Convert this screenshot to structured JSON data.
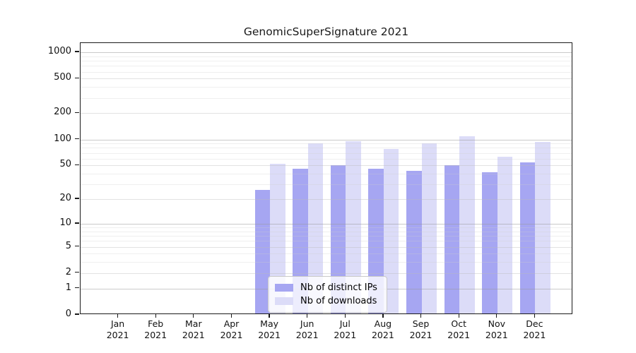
{
  "title": "GenomicSuperSignature 2021",
  "chart_data": {
    "type": "bar",
    "title": "GenomicSuperSignature 2021",
    "x_categories": [
      "Jan 2021",
      "Feb 2021",
      "Mar 2021",
      "Apr 2021",
      "May 2021",
      "Jun 2021",
      "Jul 2021",
      "Aug 2021",
      "Sep 2021",
      "Oct 2021",
      "Nov 2021",
      "Dec 2021"
    ],
    "x_tick_months": [
      "Jan",
      "Feb",
      "Mar",
      "Apr",
      "May",
      "Jun",
      "Jul",
      "Aug",
      "Sep",
      "Oct",
      "Nov",
      "Dec"
    ],
    "x_tick_year": "2021",
    "series": [
      {
        "name": "Nb of distinct IPs",
        "color": "#a6a6f2",
        "values": [
          0,
          0,
          0,
          0,
          25,
          44,
          48,
          44,
          42,
          48,
          40,
          52
        ]
      },
      {
        "name": "Nb of downloads",
        "color": "#dcdcf8",
        "values": [
          0,
          0,
          0,
          0,
          50,
          87,
          92,
          75,
          87,
          105,
          61,
          90
        ]
      }
    ],
    "y_scale": "log1p",
    "y_tick_values": [
      0,
      1,
      2,
      5,
      10,
      20,
      50,
      100,
      200,
      500,
      1000
    ],
    "y_tick_labels": [
      "0",
      "1",
      "2",
      "5",
      "10",
      "20",
      "50",
      "100",
      "200",
      "500",
      "1000"
    ],
    "y_minor_grid_values": [
      3,
      4,
      6,
      7,
      8,
      9,
      30,
      40,
      60,
      70,
      80,
      90,
      300,
      400,
      600,
      700,
      800,
      900
    ],
    "y_decade_values": [
      1,
      10,
      100,
      1000
    ],
    "ylim": [
      0,
      1280
    ],
    "grid": true,
    "legend_position": "bottom-center",
    "colors": {
      "grid_decade": "rgba(150,150,150,0.50)",
      "grid_labeled": "rgba(185,185,185,0.42)",
      "grid_minor": "rgba(205,205,205,0.32)",
      "spine": "#1a1a1a",
      "tick_text": "#111111"
    }
  },
  "legend": {
    "items": [
      {
        "label": "Nb of distinct IPs",
        "color": "#a6a6f2"
      },
      {
        "label": "Nb of downloads",
        "color": "#dcdcf8"
      }
    ]
  }
}
